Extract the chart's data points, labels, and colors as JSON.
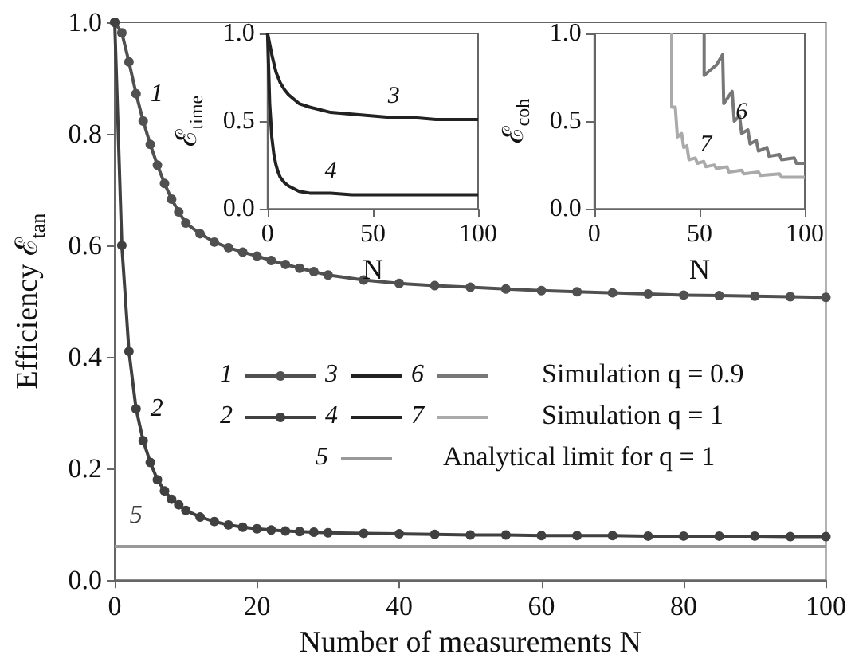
{
  "chart_data": [
    {
      "type": "line",
      "xlabel": "Number of measurements N",
      "ylabel": "Efficiency ℰ$_{tan}$",
      "xlim": [
        0,
        100
      ],
      "xticks": [
        0,
        20,
        40,
        60,
        80,
        100
      ],
      "ylim": [
        0,
        1
      ],
      "yticks": [
        {
          "value": 0,
          "label": "0.0"
        },
        {
          "value": 0.2,
          "label": "0.2"
        },
        {
          "value": 0.4,
          "label": "0.4"
        },
        {
          "value": 0.6,
          "label": "0.6"
        },
        {
          "value": 0.8,
          "label": "0.8"
        },
        {
          "value": 1,
          "label": "1.0"
        }
      ],
      "grid": false,
      "marker": "circle",
      "legend": "center",
      "series": [
        {
          "name": "1",
          "color": "#505050",
          "x": [
            0,
            1,
            2,
            3,
            4,
            5,
            6,
            7,
            8,
            9,
            10,
            12,
            14,
            16,
            18,
            20,
            22,
            24,
            26,
            28,
            30,
            35,
            40,
            45,
            50,
            55,
            60,
            65,
            70,
            75,
            80,
            85,
            90,
            95,
            100
          ],
          "values": [
            1.0,
            0.981,
            0.929,
            0.872,
            0.823,
            0.781,
            0.744,
            0.711,
            0.683,
            0.66,
            0.64,
            0.621,
            0.606,
            0.596,
            0.588,
            0.581,
            0.573,
            0.566,
            0.559,
            0.553,
            0.547,
            0.538,
            0.532,
            0.528,
            0.525,
            0.522,
            0.519,
            0.517,
            0.515,
            0.513,
            0.511,
            0.51,
            0.509,
            0.508,
            0.507
          ]
        },
        {
          "name": "2",
          "color": "#404040",
          "x": [
            0,
            1,
            2,
            3,
            4,
            5,
            6,
            7,
            8,
            9,
            10,
            12,
            14,
            16,
            18,
            20,
            22,
            24,
            26,
            28,
            30,
            35,
            40,
            45,
            50,
            55,
            60,
            65,
            70,
            75,
            80,
            85,
            90,
            95,
            100
          ],
          "values": [
            1.0,
            0.6,
            0.41,
            0.307,
            0.25,
            0.211,
            0.18,
            0.16,
            0.145,
            0.135,
            0.125,
            0.113,
            0.105,
            0.099,
            0.095,
            0.092,
            0.09,
            0.088,
            0.087,
            0.086,
            0.085,
            0.084,
            0.083,
            0.082,
            0.081,
            0.081,
            0.08,
            0.08,
            0.08,
            0.079,
            0.079,
            0.079,
            0.079,
            0.078,
            0.078
          ]
        }
      ],
      "ref_lines": [
        {
          "axis": "y",
          "value": 0.064,
          "color": "#999999"
        }
      ],
      "annotations": [
        "Simulation q = 0.9",
        "Simulation q = 1",
        "Analytical limit for q = 1",
        {
          "text": "5",
          "x": 3,
          "y": 0.064
        }
      ]
    },
    {
      "type": "line",
      "xlabel": "N",
      "ylabel": "ℰ$_{time}$",
      "xlim": [
        0,
        100
      ],
      "xticks": [
        0,
        50,
        100
      ],
      "ylim": [
        0,
        1
      ],
      "yticks": [
        {
          "value": 0,
          "label": "0.0"
        },
        {
          "value": 0.5,
          "label": "0.5"
        },
        {
          "value": 1,
          "label": "1.0"
        }
      ],
      "grid": false,
      "marker": "none",
      "series": [
        {
          "name": "3",
          "color": "#222222",
          "x": [
            0,
            2,
            4,
            6,
            8,
            10,
            15,
            20,
            30,
            40,
            50,
            60,
            70,
            80,
            90,
            100
          ],
          "values": [
            1.0,
            0.88,
            0.78,
            0.72,
            0.68,
            0.65,
            0.6,
            0.58,
            0.55,
            0.54,
            0.53,
            0.52,
            0.52,
            0.51,
            0.51,
            0.51
          ]
        },
        {
          "name": "4",
          "color": "#222222",
          "x": [
            0,
            1,
            2,
            3,
            4,
            5,
            6,
            8,
            10,
            15,
            20,
            30,
            40,
            60,
            80,
            100
          ],
          "values": [
            1.0,
            0.6,
            0.41,
            0.31,
            0.25,
            0.21,
            0.18,
            0.15,
            0.13,
            0.1,
            0.09,
            0.09,
            0.08,
            0.08,
            0.08,
            0.08
          ]
        }
      ]
    },
    {
      "type": "line",
      "xlabel": "N",
      "ylabel": "ℰ$_{coh}$",
      "xlim": [
        0,
        100
      ],
      "xticks": [
        0,
        50,
        100
      ],
      "ylim": [
        0,
        1
      ],
      "yticks": [
        {
          "value": 0,
          "label": "0.0"
        },
        {
          "value": 0.5,
          "label": "0.5"
        },
        {
          "value": 1,
          "label": "1.0"
        }
      ],
      "grid": false,
      "marker": "none",
      "series": [
        {
          "name": "6",
          "color": "#777777",
          "x": [
            52.2,
            52.2,
            54,
            56,
            58,
            60,
            61,
            61.5,
            65.5,
            66.5,
            69,
            70,
            73,
            74,
            77,
            78,
            82,
            83,
            88,
            89,
            95,
            96,
            100
          ],
          "values": [
            1.0,
            0.76,
            0.78,
            0.8,
            0.82,
            0.86,
            0.88,
            0.6,
            0.67,
            0.5,
            0.53,
            0.43,
            0.45,
            0.37,
            0.39,
            0.33,
            0.35,
            0.3,
            0.31,
            0.28,
            0.29,
            0.26,
            0.26
          ]
        },
        {
          "name": "7",
          "color": "#aaaaaa",
          "x": [
            36.8,
            36.8,
            38.5,
            39.5,
            41.5,
            42.5,
            44,
            45,
            48,
            49,
            52,
            53,
            57,
            58,
            63,
            64,
            70,
            71,
            78,
            79,
            88,
            89,
            100
          ],
          "values": [
            1.0,
            0.58,
            0.58,
            0.41,
            0.43,
            0.35,
            0.36,
            0.28,
            0.29,
            0.26,
            0.27,
            0.24,
            0.25,
            0.23,
            0.24,
            0.21,
            0.22,
            0.2,
            0.21,
            0.19,
            0.2,
            0.18,
            0.18
          ]
        }
      ]
    }
  ]
}
